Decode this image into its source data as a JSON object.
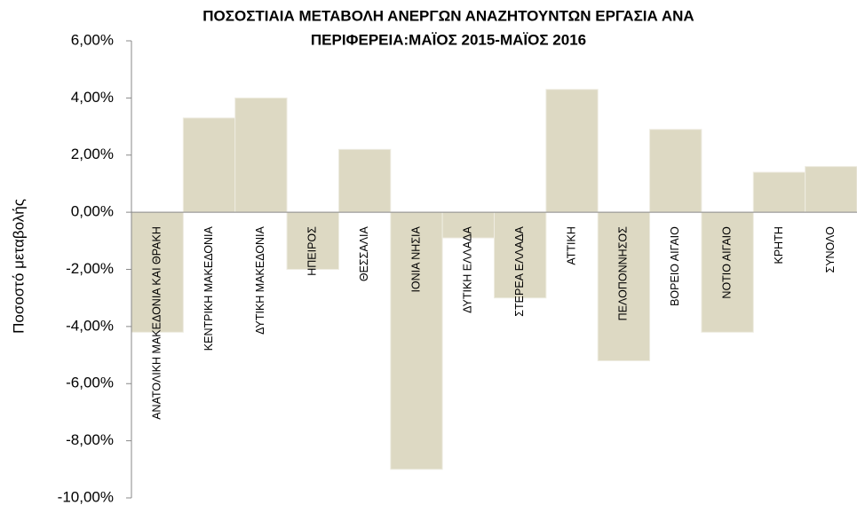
{
  "chart_data": {
    "type": "bar",
    "title": [
      "ΠΟΣΟΣΤΙΑΙΑ ΜΕΤΑΒΟΛΗ ΑΝΕΡΓΩΝ ΑΝΑΖΗΤΟΥΝΤΩΝ ΕΡΓΑΣΙΑ ΑΝΑ",
      "ΠΕΡΙΦΕΡΕΙΑ:ΜΑΪΟΣ 2015-ΜΑΪΟΣ  2016"
    ],
    "ylabel": "Ποσοστό μεταβολής",
    "categories": [
      "ΑΝΑΤΟΛΙΚΗ ΜΑΚΕΔΟΝΙΑ ΚΑΙ ΘΡΑΚΗ",
      "ΚΕΝΤΡΙΚΗ ΜΑΚΕΔΟΝΙΑ",
      "ΔΥΤΙΚΗ ΜΑΚΕΔΟΝΙΑ",
      "ΗΠΕΙΡΟΣ",
      "ΘΕΣΣΑΛΙΑ",
      "ΙΟΝΙΑ ΝΗΣΙΑ",
      "ΔΥΤΙΚΗ ΕΛΛΑΔΑ",
      "ΣΤΕΡΕΑ ΕΛΛΑΔΑ",
      "ΑΤΤΙΚΗ",
      "ΠΕΛΟΠΟΝΝΗΣΟΣ",
      "ΒΟΡΕΙΟ ΑΙΓΑΙΟ",
      "ΝΟΤΙΟ ΑΙΓΑΙΟ",
      "ΚΡΗΤΗ",
      "ΣΥΝΟΛΟ"
    ],
    "values": [
      -4.2,
      3.3,
      4.0,
      -2.0,
      2.2,
      -9.0,
      -0.9,
      -3.0,
      4.3,
      -5.2,
      2.9,
      -4.2,
      1.4,
      1.6
    ],
    "color": "#ddd9c3",
    "ylim": [
      -10,
      6
    ],
    "yticks": [
      {
        "value": -10,
        "label": "-10,00%"
      },
      {
        "value": -8,
        "label": "-8,00%"
      },
      {
        "value": -6,
        "label": "-6,00%"
      },
      {
        "value": -4,
        "label": "-4,00%"
      },
      {
        "value": -2,
        "label": "-2,00%"
      },
      {
        "value": 0,
        "label": "0,00%"
      },
      {
        "value": 2,
        "label": "2,00%"
      },
      {
        "value": 4,
        "label": "4,00%"
      },
      {
        "value": 6,
        "label": "6,00%"
      }
    ],
    "grid": false
  }
}
